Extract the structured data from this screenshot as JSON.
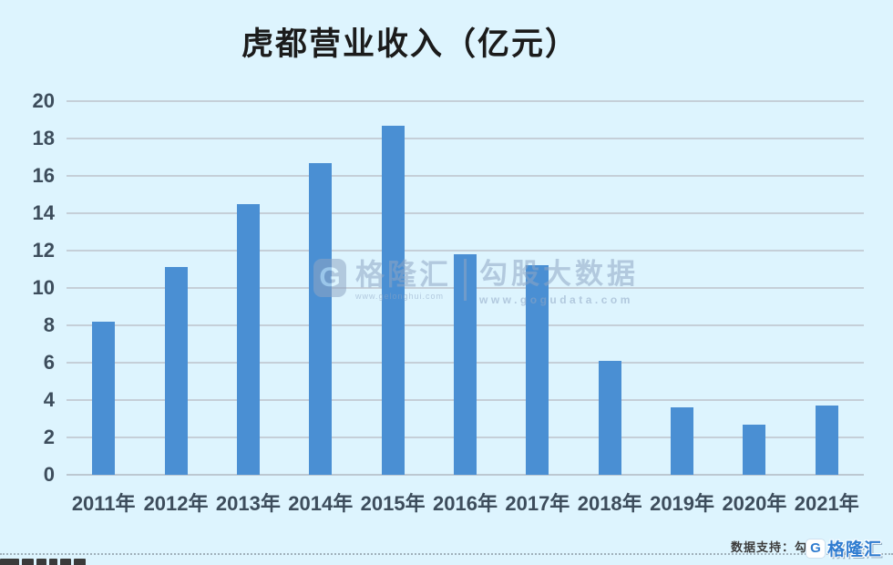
{
  "title": "虎都营业收入（亿元）",
  "watermark": {
    "logo_g": "G",
    "brand": "格隆汇",
    "brand_url": "www.gelonghui.com",
    "product": "勾股大数据",
    "product_url": "www.gogudata.com"
  },
  "footer": {
    "caption": "数据支持：勾股",
    "logo_g": "G",
    "logo_text": "格隆汇"
  },
  "colors": {
    "background": "#DDF4FE",
    "bar": "#4A8FD3",
    "gridline": "#C5CFD8",
    "axis_text": "#3D4D5C",
    "title_text": "#1B1B1B",
    "footer_text": "#3C3C3C",
    "logo_blue": "#2F7CD0",
    "watermark": "#8FA6C4"
  },
  "chart_data": {
    "type": "bar",
    "title": "虎都营业收入（亿元）",
    "categories": [
      "2011年",
      "2012年",
      "2013年",
      "2014年",
      "2015年",
      "2016年",
      "2017年",
      "2018年",
      "2019年",
      "2020年",
      "2021年"
    ],
    "values": [
      8.2,
      11.1,
      14.5,
      16.7,
      18.7,
      11.8,
      11.2,
      6.1,
      3.6,
      2.7,
      3.7
    ],
    "xlabel": "",
    "ylabel": "",
    "ylim": [
      0,
      20
    ],
    "ytick_step": 2,
    "yticks": [
      0,
      2,
      4,
      6,
      8,
      10,
      12,
      14,
      16,
      18,
      20
    ],
    "grid": true,
    "legend": "none",
    "bar_color": "#4A8FD3"
  }
}
